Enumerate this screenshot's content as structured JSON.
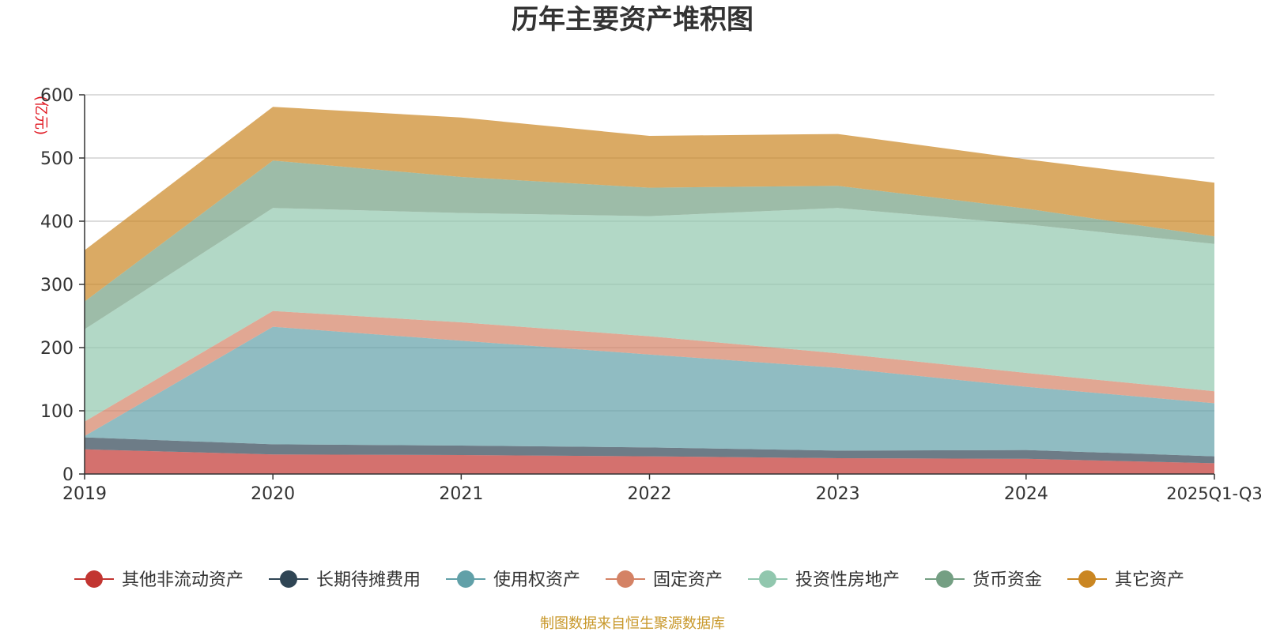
{
  "chart_data": {
    "type": "area",
    "stacked": true,
    "title": "历年主要资产堆积图",
    "ylabel": "(亿元)",
    "xlabel": "",
    "ylim": [
      0,
      600
    ],
    "yticks": [
      "0",
      "100",
      "200",
      "300",
      "400",
      "500",
      "600"
    ],
    "categories": [
      "2019",
      "2020",
      "2021",
      "2022",
      "2023",
      "2024",
      "2025Q1-Q3"
    ],
    "series": [
      {
        "name": "其他非流动资产",
        "color": "#c23531",
        "values": [
          39,
          31,
          30,
          28,
          25,
          24,
          17
        ]
      },
      {
        "name": "长期待摊费用",
        "color": "#2f4554",
        "values": [
          19,
          16,
          15,
          14,
          12,
          14,
          11
        ]
      },
      {
        "name": "使用权资产",
        "color": "#61a0a8",
        "values": [
          2,
          186,
          166,
          147,
          131,
          100,
          84
        ]
      },
      {
        "name": "固定资产",
        "color": "#d48265",
        "values": [
          23,
          25,
          29,
          29,
          23,
          22,
          19
        ]
      },
      {
        "name": "投资性房地产",
        "color": "#91c7ae",
        "values": [
          146,
          163,
          173,
          190,
          230,
          235,
          233
        ]
      },
      {
        "name": "货币资金",
        "color": "#749f83",
        "values": [
          44,
          75,
          57,
          45,
          35,
          25,
          12
        ]
      },
      {
        "name": "其它资产",
        "color": "#ca8622",
        "values": [
          81,
          85,
          94,
          82,
          82,
          78,
          85
        ]
      }
    ],
    "legend_position": "bottom",
    "grid": true
  },
  "footer": "制图数据来自恒生聚源数据库"
}
